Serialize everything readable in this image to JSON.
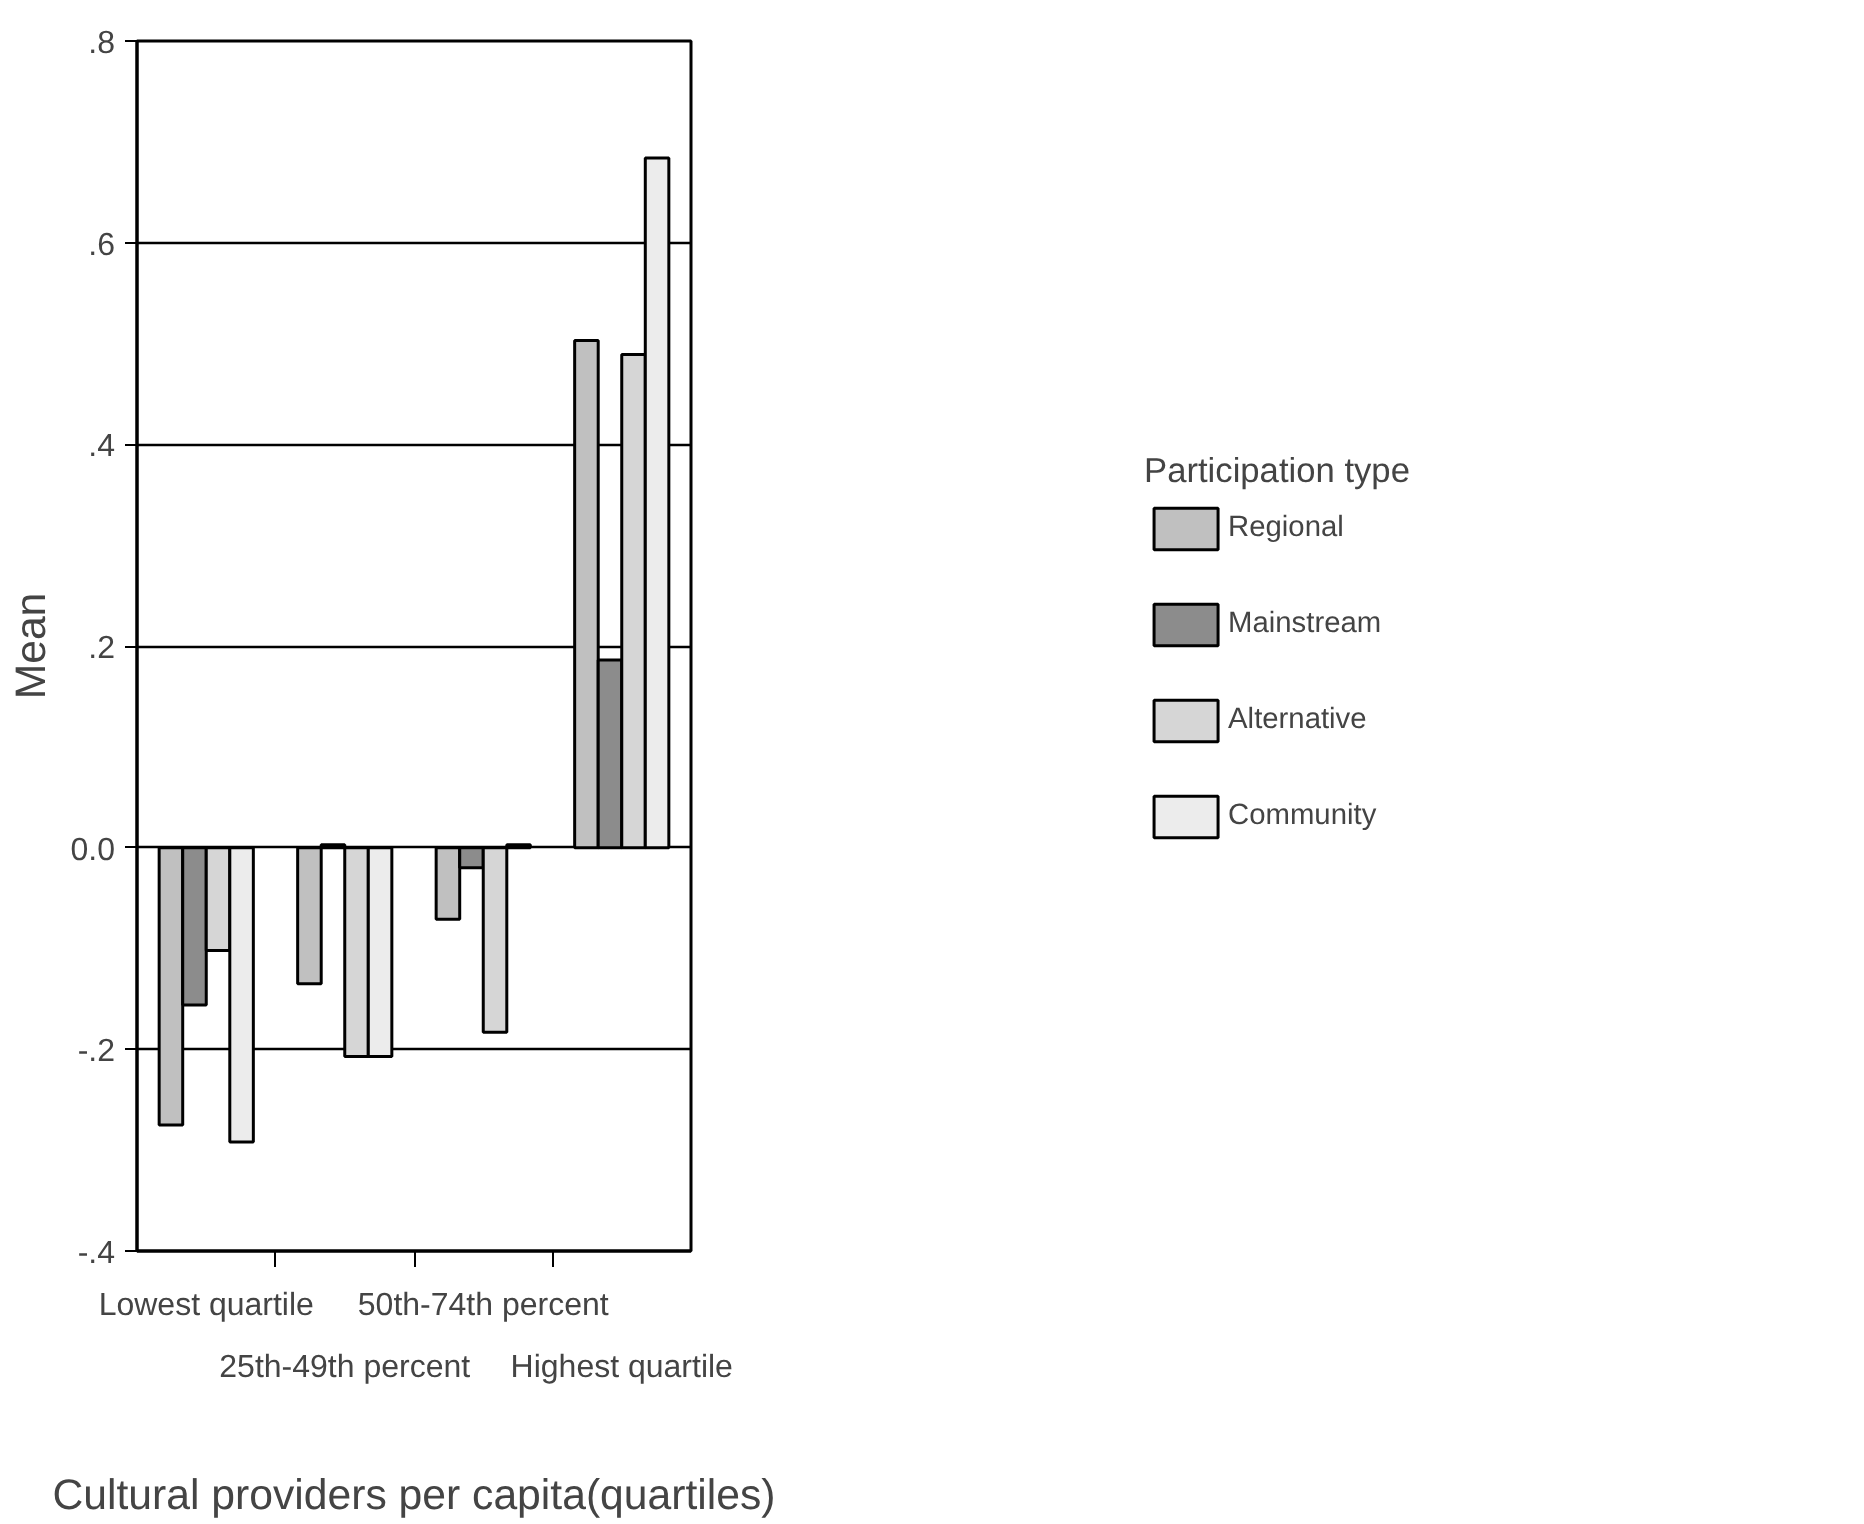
{
  "chart_data": {
    "type": "bar",
    "xlabel": "Cultural providers per capita(quartiles)",
    "ylabel": "Mean",
    "legend_title": "Participation type",
    "categories": [
      "Lowest quartile",
      "25th-49th percent",
      "50th-74th percent",
      "Highest quartile"
    ],
    "series": [
      {
        "name": "Regional",
        "color": "#c0c0c0",
        "values": [
          -0.275,
          -0.135,
          -0.071,
          0.503
        ]
      },
      {
        "name": "Mainstream",
        "color": "#8c8c8c",
        "values": [
          -0.156,
          0.003,
          -0.02,
          0.186
        ]
      },
      {
        "name": "Alternative",
        "color": "#d6d6d6",
        "values": [
          -0.102,
          -0.207,
          -0.183,
          0.489
        ]
      },
      {
        "name": "Community",
        "color": "#ececec",
        "values": [
          -0.292,
          -0.207,
          0.003,
          0.684
        ]
      }
    ],
    "ylim": [
      -0.4,
      0.8
    ],
    "yticks": [
      {
        "value": -0.4,
        "label": "-.4"
      },
      {
        "value": -0.2,
        "label": "-.2"
      },
      {
        "value": 0,
        "label": "0.0"
      },
      {
        "value": 0.2,
        "label": ".2"
      },
      {
        "value": 0.4,
        "label": ".4"
      },
      {
        "value": 0.6,
        "label": ".6"
      },
      {
        "value": 0.8,
        "label": ".8"
      }
    ],
    "grid": "y",
    "legend": "right"
  }
}
